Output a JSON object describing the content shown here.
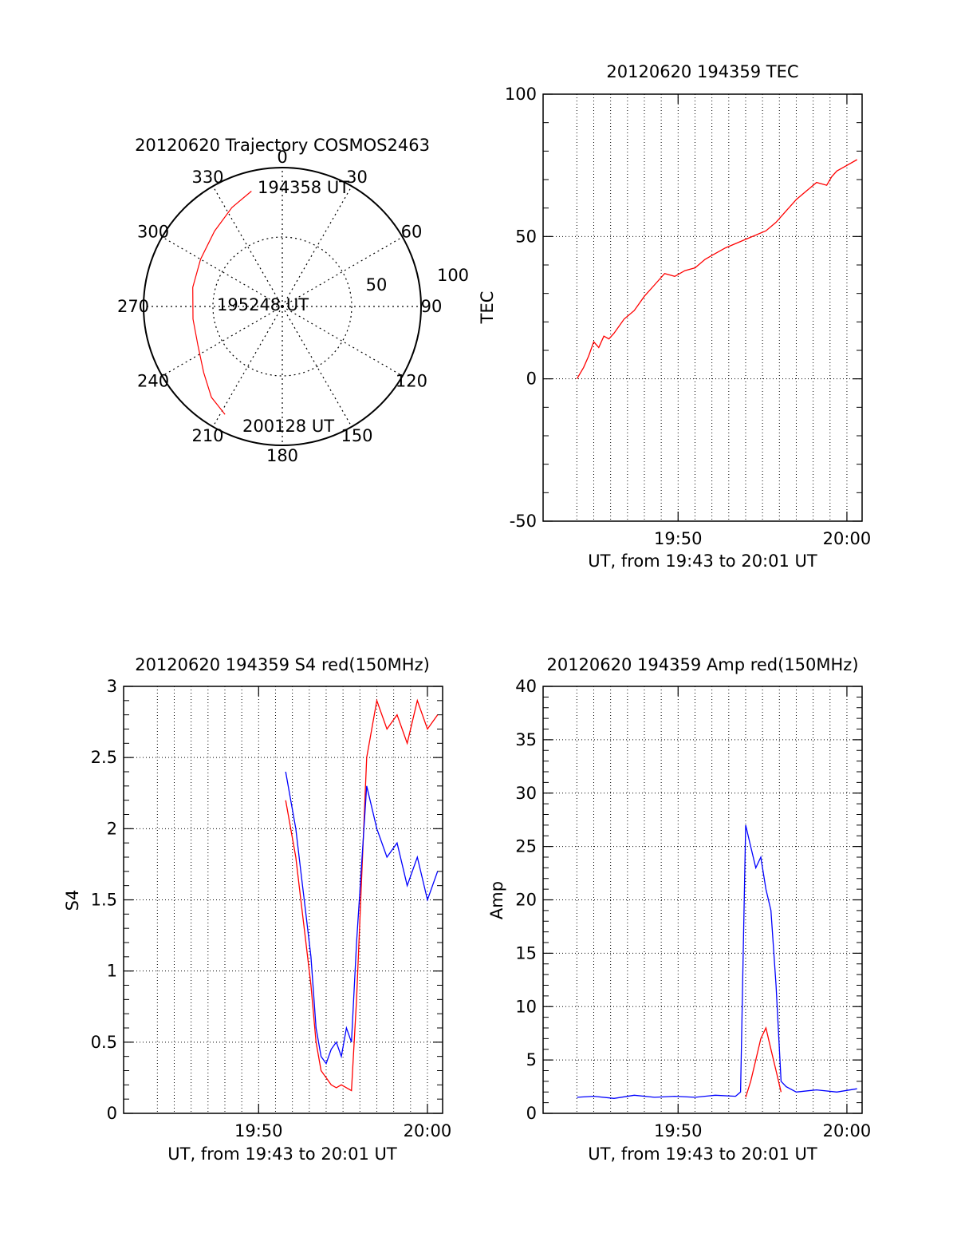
{
  "colors": {
    "red": "#ff0000",
    "blue": "#0000ff",
    "axis": "#000000",
    "grid": "#000000"
  },
  "chart_data": [
    {
      "id": "polar",
      "type": "scatter",
      "subtype": "polar",
      "title": "20120620 Trajectory COSMOS2463",
      "azimuth_labels": [
        "0",
        "30",
        "60",
        "90",
        "120",
        "150",
        "180",
        "210",
        "240",
        "270",
        "300",
        "330"
      ],
      "radial_labels": [
        "50",
        "100"
      ],
      "rlim": [
        0,
        100
      ],
      "grid": true,
      "annotations": [
        "194358 UT",
        "195248 UT",
        "200128 UT"
      ],
      "series": [
        {
          "color": "red",
          "points": [
            {
              "az": 345,
              "r": 86
            },
            {
              "az": 333,
              "r": 80
            },
            {
              "az": 318,
              "r": 73
            },
            {
              "az": 300,
              "r": 68
            },
            {
              "az": 282,
              "r": 66
            },
            {
              "az": 262,
              "r": 65
            },
            {
              "az": 245,
              "r": 67
            },
            {
              "az": 230,
              "r": 74
            },
            {
              "az": 218,
              "r": 83
            },
            {
              "az": 208,
              "r": 88
            }
          ]
        }
      ]
    },
    {
      "id": "tec",
      "type": "line",
      "title": "20120620 194359 TEC",
      "ylabel": "TEC",
      "xlabel": "UT, from 19:43 to 20:01 UT",
      "xlim": [
        19.7,
        20.015
      ],
      "ylim": [
        -50,
        100
      ],
      "xticks": [
        {
          "v": 19.8333,
          "l": "19:50"
        },
        {
          "v": 20.0,
          "l": "20:00"
        }
      ],
      "yticks": [
        {
          "v": -50,
          "l": "-50"
        },
        {
          "v": 0,
          "l": "0"
        },
        {
          "v": 50,
          "l": "50"
        },
        {
          "v": 100,
          "l": "100"
        }
      ],
      "grid": true,
      "series": [
        {
          "color": "red",
          "x": [
            19.7334,
            19.74,
            19.745,
            19.75,
            19.755,
            19.76,
            19.765,
            19.77,
            19.78,
            19.79,
            19.8,
            19.81,
            19.82,
            19.83,
            19.84,
            19.85,
            19.86,
            19.87,
            19.88,
            19.9,
            19.92,
            19.93,
            19.94,
            19.95,
            19.96,
            19.97,
            19.98,
            19.985,
            19.99,
            20.0,
            20.01
          ],
          "y": [
            0,
            4,
            8,
            13,
            11,
            15,
            14,
            16,
            21,
            24,
            29,
            33,
            37,
            36,
            38,
            39,
            42,
            44,
            46,
            49,
            52,
            55,
            59,
            63,
            66,
            69,
            68,
            71,
            73,
            75,
            77
          ]
        }
      ]
    },
    {
      "id": "s4",
      "type": "line",
      "title": "20120620 194359 S4 red(150MHz)",
      "ylabel": "S4",
      "xlabel": "UT, from 19:43 to 20:01 UT",
      "xlim": [
        19.7,
        20.015
      ],
      "ylim": [
        0,
        3
      ],
      "xticks": [
        {
          "v": 19.8333,
          "l": "19:50"
        },
        {
          "v": 20.0,
          "l": "20:00"
        }
      ],
      "yticks": [
        {
          "v": 0,
          "l": "0"
        },
        {
          "v": 0.5,
          "l": "0.5"
        },
        {
          "v": 1,
          "l": "1"
        },
        {
          "v": 1.5,
          "l": "1.5"
        },
        {
          "v": 2,
          "l": "2"
        },
        {
          "v": 2.5,
          "l": "2.5"
        },
        {
          "v": 3,
          "l": "3"
        }
      ],
      "grid": true,
      "series": [
        {
          "color": "red",
          "x": [
            19.86,
            19.87,
            19.875,
            19.88,
            19.885,
            19.89,
            19.895,
            19.9,
            19.905,
            19.91,
            19.915,
            19.92,
            19.925,
            19.93,
            19.94,
            19.95,
            19.96,
            19.97,
            19.98,
            19.99,
            20.0,
            20.01
          ],
          "y": [
            2.2,
            1.8,
            1.5,
            1.2,
            0.9,
            0.5,
            0.3,
            0.25,
            0.2,
            0.18,
            0.2,
            0.18,
            0.16,
            0.8,
            2.5,
            2.9,
            2.7,
            2.8,
            2.6,
            2.9,
            2.7,
            2.8
          ]
        },
        {
          "color": "blue",
          "x": [
            19.86,
            19.87,
            19.875,
            19.88,
            19.885,
            19.89,
            19.895,
            19.9,
            19.905,
            19.91,
            19.915,
            19.92,
            19.925,
            19.93,
            19.94,
            19.95,
            19.96,
            19.97,
            19.98,
            19.99,
            20.0,
            20.01
          ],
          "y": [
            2.4,
            2.0,
            1.7,
            1.4,
            1.1,
            0.6,
            0.4,
            0.35,
            0.45,
            0.5,
            0.4,
            0.6,
            0.5,
            1.2,
            2.3,
            2.0,
            1.8,
            1.9,
            1.6,
            1.8,
            1.5,
            1.7
          ]
        }
      ]
    },
    {
      "id": "amp",
      "type": "line",
      "title": "20120620 194359 Amp red(150MHz)",
      "ylabel": "Amp",
      "xlabel": "UT, from 19:43 to 20:01 UT",
      "xlim": [
        19.7,
        20.015
      ],
      "ylim": [
        0,
        40
      ],
      "xticks": [
        {
          "v": 19.8333,
          "l": "19:50"
        },
        {
          "v": 20.0,
          "l": "20:00"
        }
      ],
      "yticks": [
        {
          "v": 0,
          "l": "0"
        },
        {
          "v": 5,
          "l": "5"
        },
        {
          "v": 10,
          "l": "10"
        },
        {
          "v": 15,
          "l": "15"
        },
        {
          "v": 20,
          "l": "20"
        },
        {
          "v": 25,
          "l": "25"
        },
        {
          "v": 30,
          "l": "30"
        },
        {
          "v": 35,
          "l": "35"
        },
        {
          "v": 40,
          "l": "40"
        }
      ],
      "grid": true,
      "series": [
        {
          "color": "red",
          "x": [
            19.9,
            19.905,
            19.91,
            19.915,
            19.92,
            19.925,
            19.93,
            19.935
          ],
          "y": [
            1.5,
            3,
            5,
            7,
            8,
            6,
            4,
            2
          ]
        },
        {
          "color": "blue",
          "x": [
            19.7334,
            19.75,
            19.77,
            19.79,
            19.81,
            19.83,
            19.85,
            19.87,
            19.89,
            19.895,
            19.9,
            19.905,
            19.91,
            19.915,
            19.92,
            19.925,
            19.93,
            19.935,
            19.94,
            19.95,
            19.97,
            19.99,
            20.01
          ],
          "y": [
            1.5,
            1.6,
            1.4,
            1.7,
            1.5,
            1.6,
            1.5,
            1.7,
            1.6,
            2.0,
            27,
            25,
            23,
            24,
            21,
            19,
            12,
            3,
            2.5,
            2.0,
            2.2,
            2.0,
            2.3
          ]
        }
      ]
    }
  ]
}
